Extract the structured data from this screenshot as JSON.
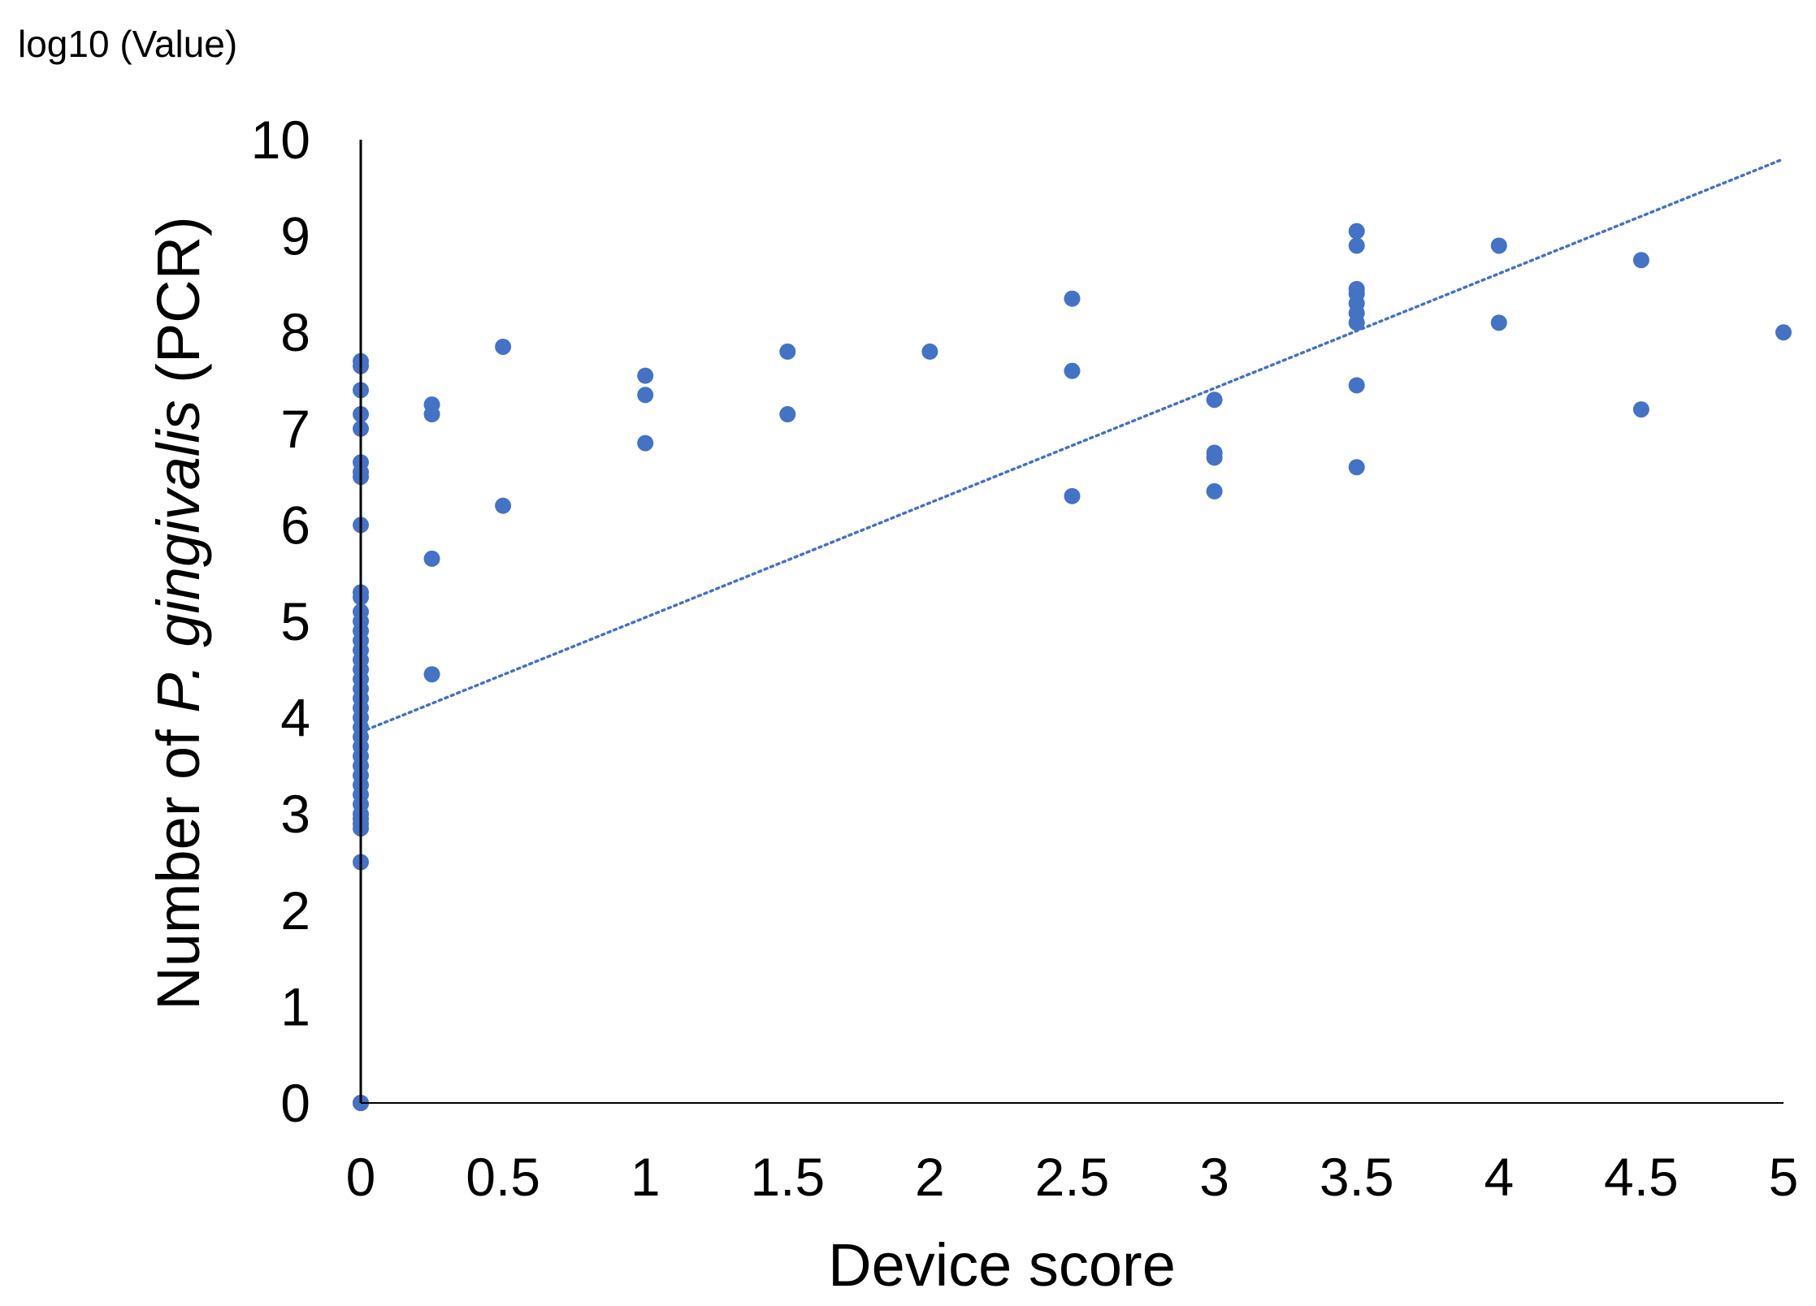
{
  "chart_data": {
    "type": "scatter",
    "corner_label": "log10 (Value)",
    "xlabel": "Device score",
    "ylabel_parts": [
      {
        "text": "Number of ",
        "italic": false
      },
      {
        "text": "P. gingivalis",
        "italic": true
      },
      {
        "text": " (PCR)",
        "italic": false
      }
    ],
    "xlim": [
      0,
      5
    ],
    "ylim": [
      0,
      10
    ],
    "x_ticks": [
      "0",
      "0.5",
      "1",
      "1.5",
      "2",
      "2.5",
      "3",
      "3.5",
      "4",
      "4.5",
      "5"
    ],
    "y_ticks": [
      "0",
      "1",
      "2",
      "3",
      "4",
      "5",
      "6",
      "7",
      "8",
      "9",
      "10"
    ],
    "grid": false,
    "legend": "none",
    "marker_color": "#4472C4",
    "series": [
      {
        "points": [
          [
            0,
            0
          ],
          [
            0,
            0
          ],
          [
            0,
            0
          ],
          [
            0,
            2.5
          ],
          [
            0,
            2.85
          ],
          [
            0,
            2.9
          ],
          [
            0,
            2.95
          ],
          [
            0,
            3.0
          ],
          [
            0,
            3.1
          ],
          [
            0,
            3.2
          ],
          [
            0,
            3.3
          ],
          [
            0,
            3.4
          ],
          [
            0,
            3.5
          ],
          [
            0,
            3.6
          ],
          [
            0,
            3.7
          ],
          [
            0,
            3.8
          ],
          [
            0,
            3.9
          ],
          [
            0,
            4.0
          ],
          [
            0,
            4.1
          ],
          [
            0,
            4.2
          ],
          [
            0,
            4.3
          ],
          [
            0,
            4.4
          ],
          [
            0,
            4.5
          ],
          [
            0,
            4.6
          ],
          [
            0,
            4.7
          ],
          [
            0,
            4.8
          ],
          [
            0,
            4.9
          ],
          [
            0,
            5.0
          ],
          [
            0,
            5.1
          ],
          [
            0,
            5.25
          ],
          [
            0,
            5.3
          ],
          [
            0,
            6.0
          ],
          [
            0,
            6.5
          ],
          [
            0,
            6.55
          ],
          [
            0,
            6.65
          ],
          [
            0,
            7.0
          ],
          [
            0,
            7.15
          ],
          [
            0,
            7.4
          ],
          [
            0,
            7.65
          ],
          [
            0,
            7.7
          ],
          [
            0.25,
            4.45
          ],
          [
            0.25,
            5.65
          ],
          [
            0.25,
            7.15
          ],
          [
            0.25,
            7.25
          ],
          [
            0.5,
            6.2
          ],
          [
            0.5,
            7.85
          ],
          [
            1,
            6.85
          ],
          [
            1,
            7.35
          ],
          [
            1,
            7.55
          ],
          [
            1.5,
            7.15
          ],
          [
            1.5,
            7.8
          ],
          [
            2,
            7.8
          ],
          [
            2.5,
            6.3
          ],
          [
            2.5,
            7.6
          ],
          [
            2.5,
            8.35
          ],
          [
            3,
            6.35
          ],
          [
            3,
            6.7
          ],
          [
            3,
            6.75
          ],
          [
            3,
            7.3
          ],
          [
            3.5,
            6.6
          ],
          [
            3.5,
            7.45
          ],
          [
            3.5,
            8.1
          ],
          [
            3.5,
            8.2
          ],
          [
            3.5,
            8.3
          ],
          [
            3.5,
            8.4
          ],
          [
            3.5,
            8.45
          ],
          [
            3.5,
            8.9
          ],
          [
            3.5,
            9.05
          ],
          [
            4,
            8.1
          ],
          [
            4,
            8.9
          ],
          [
            4.5,
            7.2
          ],
          [
            4.5,
            8.75
          ],
          [
            5,
            8.0
          ]
        ]
      }
    ],
    "trendline": {
      "style": "dotted",
      "color": "#4472C4",
      "x": [
        0,
        5
      ],
      "y": [
        3.85,
        9.8
      ]
    }
  }
}
